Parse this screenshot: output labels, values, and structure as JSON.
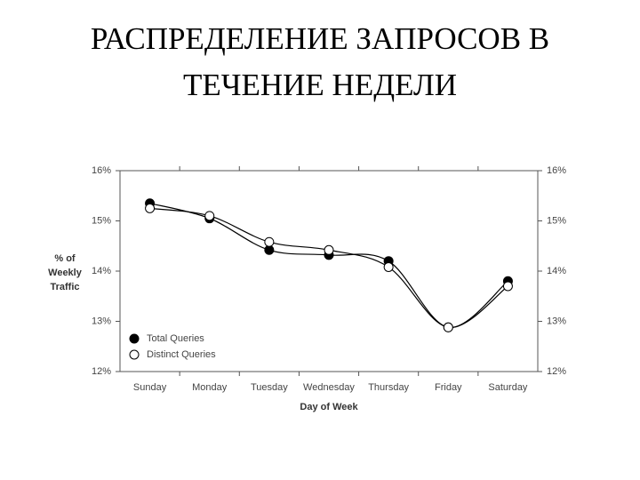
{
  "title": "РАСПРЕДЕЛЕНИЕ ЗАПРОСОВ В ТЕЧЕНИЕ НЕДЕЛИ",
  "chart_data": {
    "type": "line",
    "xlabel": "Day of Week",
    "ylabel": "% of Weekly Traffic",
    "categories": [
      "Sunday",
      "Monday",
      "Tuesday",
      "Wednesday",
      "Thursday",
      "Friday",
      "Saturday"
    ],
    "series": [
      {
        "name": "Total Queries",
        "color": "#000000",
        "marker_fill": "#000000",
        "values": [
          15.35,
          15.05,
          14.42,
          14.32,
          14.2,
          12.88,
          13.8
        ]
      },
      {
        "name": "Distinct Queries",
        "color": "#000000",
        "marker_fill": "#ffffff",
        "values": [
          15.25,
          15.1,
          14.58,
          14.42,
          14.08,
          12.88,
          13.7
        ]
      }
    ],
    "ylim": [
      12,
      16
    ],
    "yticks": [
      {
        "value": 12,
        "label": "12%"
      },
      {
        "value": 13,
        "label": "13%"
      },
      {
        "value": 14,
        "label": "14%"
      },
      {
        "value": 15,
        "label": "15%"
      },
      {
        "value": 16,
        "label": "16%"
      }
    ],
    "y2lim": [
      12,
      16
    ],
    "y2ticks": [
      {
        "value": 12,
        "label": "12%"
      },
      {
        "value": 13,
        "label": "13%"
      },
      {
        "value": 14,
        "label": "14%"
      },
      {
        "value": 15,
        "label": "15%"
      },
      {
        "value": 16,
        "label": "16%"
      }
    ],
    "grid": false,
    "legend": "lower left"
  }
}
